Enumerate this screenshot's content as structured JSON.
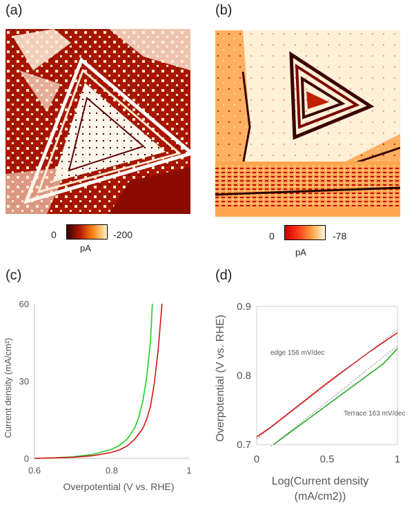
{
  "panels": {
    "a": {
      "label": "(a)",
      "colorbar": {
        "min_label": "0",
        "max_label": "-200",
        "unit": "pA",
        "colors": [
          "#3a0000",
          "#b51a00",
          "#ff8c1a",
          "#fff2c8"
        ]
      }
    },
    "b": {
      "label": "(b)",
      "colorbar": {
        "min_label": "0",
        "max_label": "-78",
        "unit": "pA",
        "colors": [
          "#cf0000",
          "#ff3a1a",
          "#ffa040",
          "#fff6dc"
        ]
      }
    },
    "c": {
      "label": "(c)"
    },
    "d": {
      "label": "(d)"
    }
  },
  "chart_data": [
    {
      "panel": "c",
      "type": "line",
      "xlabel": "Overpotential (V vs. RHE)",
      "ylabel": "Current density (mA/cm²)",
      "xlim": [
        0.6,
        1.0
      ],
      "ylim": [
        0,
        60
      ],
      "xticks": [
        "0.6",
        "0.8",
        "1"
      ],
      "xtick_values": [
        0.6,
        0.8,
        1.0
      ],
      "yticks": [
        "0",
        "30",
        "60"
      ],
      "ytick_values": [
        0,
        30,
        60
      ],
      "grid": false,
      "series": [
        {
          "color": "#22cc22",
          "x": [
            0.6,
            0.65,
            0.7,
            0.75,
            0.8,
            0.82,
            0.84,
            0.86,
            0.87,
            0.88,
            0.89,
            0.9,
            0.905
          ],
          "y": [
            0,
            0.2,
            0.6,
            1.5,
            3.5,
            5,
            7.5,
            12,
            16,
            22,
            31,
            45,
            60
          ]
        },
        {
          "color": "#d81010",
          "x": [
            0.6,
            0.65,
            0.7,
            0.75,
            0.8,
            0.82,
            0.84,
            0.86,
            0.88,
            0.89,
            0.9,
            0.91,
            0.92,
            0.93
          ],
          "y": [
            0,
            0.15,
            0.4,
            1.0,
            2.3,
            3.3,
            4.8,
            7.5,
            11.5,
            15,
            20,
            29,
            42,
            60
          ]
        }
      ]
    },
    {
      "panel": "d",
      "type": "line",
      "xlabel": "Log(Current density (mA/cm2))",
      "ylabel": "Overpotential (V vs. RHE)",
      "xlim": [
        0,
        1
      ],
      "ylim": [
        0.7,
        0.9
      ],
      "xticks": [
        "0",
        "0.5",
        "1"
      ],
      "xtick_values": [
        0,
        0.5,
        1
      ],
      "yticks": [
        "0.7",
        "0.8",
        "0.9"
      ],
      "ytick_values": [
        0.7,
        0.8,
        0.9
      ],
      "grid": false,
      "annotations": [
        {
          "text": "edge 156 mV/dec",
          "color": "#d81010"
        },
        {
          "text": "Terrace 163 mV/dec",
          "color": "#22aa22"
        }
      ],
      "series": [
        {
          "color": "#d81010",
          "x": [
            0,
            0.1,
            0.2,
            0.3,
            0.4,
            0.5,
            0.6,
            0.7,
            0.8,
            0.9,
            1.0
          ],
          "y": [
            0.711,
            0.725,
            0.741,
            0.757,
            0.773,
            0.789,
            0.804,
            0.819,
            0.834,
            0.848,
            0.862
          ],
          "fit": {
            "x": [
              0,
              1
            ],
            "y": [
              0.708,
              0.866
            ]
          }
        },
        {
          "color": "#22aa22",
          "x": [
            0.12,
            0.2,
            0.3,
            0.4,
            0.5,
            0.6,
            0.7,
            0.8,
            0.9,
            1.0
          ],
          "y": [
            0.7,
            0.712,
            0.727,
            0.742,
            0.757,
            0.772,
            0.787,
            0.802,
            0.817,
            0.839
          ],
          "fit": {
            "x": [
              0.1,
              1
            ],
            "y": [
              0.697,
              0.843
            ]
          }
        }
      ]
    }
  ]
}
